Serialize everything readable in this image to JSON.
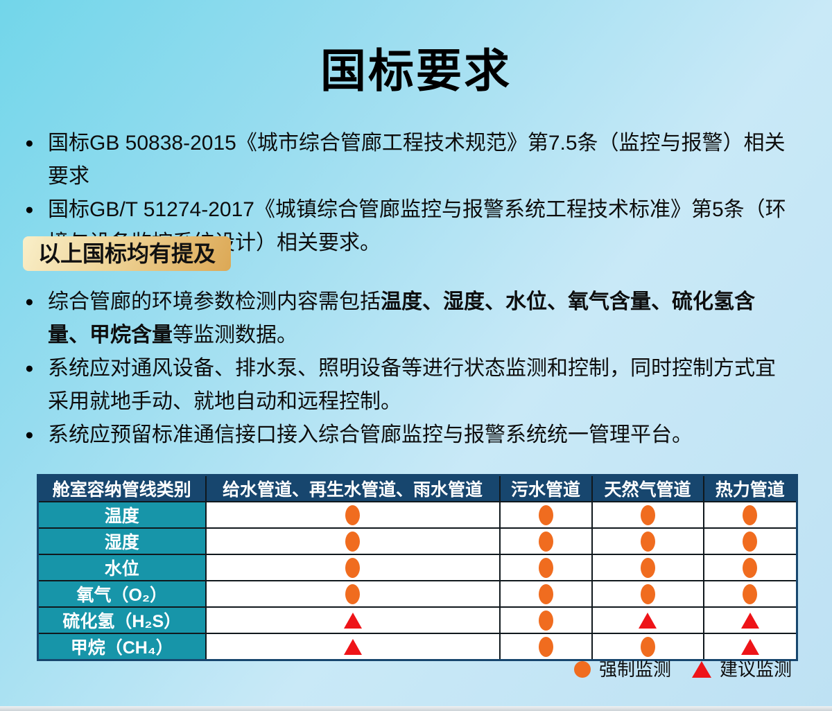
{
  "title": "国标要求",
  "bullet_icon": "●",
  "intro_bullets": [
    {
      "text": "国标GB 50838-2015《城市综合管廊工程技术规范》第7.5条（监控与报警）相关要求"
    },
    {
      "text": "国标GB/T 51274-2017《城镇综合管廊监控与报警系统工程技术标准》第5条（环境与设备监控系统设计）相关要求。"
    }
  ],
  "badge": "以上国标均有提及",
  "detail_bullets": [
    {
      "segments": [
        {
          "text": "综合管廊的环境参数检测内容需包括",
          "bold": false
        },
        {
          "text": "温度、湿度、水位、氧气含量、硫化氢含量、甲烷含量",
          "bold": true
        },
        {
          "text": "等监测数据。",
          "bold": false
        }
      ]
    },
    {
      "segments": [
        {
          "text": "系统应对通风设备、排水泵、照明设备等进行状态监测和控制，同时控制方式宜采用就地手动、就地自动和远程控制。",
          "bold": false
        }
      ]
    },
    {
      "segments": [
        {
          "text": "系统应预留标准通信接口接入综合管廊监控与报警系统统一管理平台。",
          "bold": false
        }
      ]
    }
  ],
  "table": {
    "columns": [
      "舱室容纳管线类别",
      "给水管道、再生水管道、雨水管道",
      "污水管道",
      "天然气管道",
      "热力管道"
    ],
    "rows": [
      {
        "label": "温度",
        "cells": [
          "circle",
          "circle",
          "circle",
          "circle"
        ]
      },
      {
        "label": "湿度",
        "cells": [
          "circle",
          "circle",
          "circle",
          "circle"
        ]
      },
      {
        "label": "水位",
        "cells": [
          "circle",
          "circle",
          "circle",
          "circle"
        ]
      },
      {
        "label": "氧气（O₂）",
        "cells": [
          "circle",
          "circle",
          "circle",
          "circle"
        ]
      },
      {
        "label": "硫化氢（H₂S）",
        "cells": [
          "triangle",
          "circle",
          "triangle",
          "triangle"
        ]
      },
      {
        "label": "甲烷（CH₄）",
        "cells": [
          "triangle",
          "circle",
          "circle",
          "triangle"
        ]
      }
    ]
  },
  "legend": [
    {
      "symbol": "circle",
      "label": "强制监测"
    },
    {
      "symbol": "triangle",
      "label": "建议监测"
    }
  ],
  "colors": {
    "mandatory_orange": "#f06c1f",
    "suggested_red": "#ee1418",
    "table_header_navy": "#17466e",
    "row_label_teal": "#1795a9",
    "badge_gold_from": "#f9efc9",
    "badge_gold_to": "#dca855",
    "background_cyan": "#72d6ea",
    "background_light_blue": "#bee1f3"
  }
}
